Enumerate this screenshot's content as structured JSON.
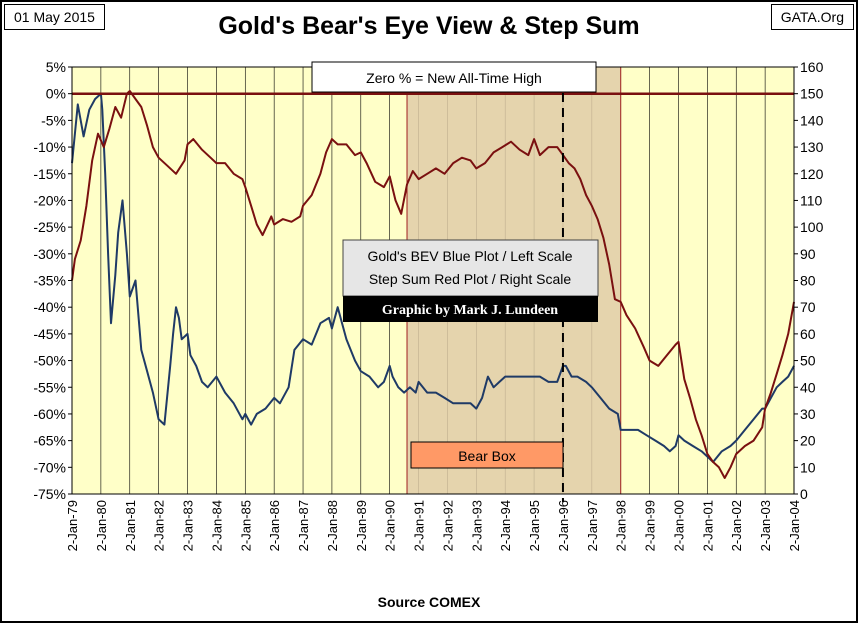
{
  "header": {
    "date": "01 May 2015",
    "site": "GATA.Org",
    "title": "Gold's Bear's Eye View & Step Sum"
  },
  "footer": {
    "source": "Source COMEX"
  },
  "colors": {
    "plot_bg": "#ffffc8",
    "bear_box_fill": "#e0cca8",
    "bear_box_border": "#a02020",
    "blue_series": "#1f3a66",
    "red_series": "#7a1010",
    "zero_line": "#7a1010",
    "bear_label_fill": "#ff9966"
  },
  "chart_data": {
    "type": "line",
    "title": "Gold's Bear's Eye View & Step Sum",
    "xlabel": "Source COMEX",
    "x_ticks": [
      "2-Jan-79",
      "2-Jan-80",
      "2-Jan-81",
      "2-Jan-82",
      "2-Jan-83",
      "2-Jan-84",
      "2-Jan-85",
      "2-Jan-86",
      "2-Jan-87",
      "2-Jan-88",
      "2-Jan-89",
      "2-Jan-90",
      "2-Jan-91",
      "2-Jan-92",
      "2-Jan-93",
      "2-Jan-94",
      "2-Jan-95",
      "2-Jan-96",
      "2-Jan-97",
      "2-Jan-98",
      "2-Jan-99",
      "2-Jan-00",
      "2-Jan-01",
      "2-Jan-02",
      "2-Jan-03",
      "2-Jan-04"
    ],
    "xlim": [
      1979,
      2004
    ],
    "left_axis": {
      "ylim": [
        -75,
        5
      ],
      "ticks": [
        "5%",
        "0%",
        "-5%",
        "-10%",
        "-15%",
        "-20%",
        "-25%",
        "-30%",
        "-35%",
        "-40%",
        "-45%",
        "-50%",
        "-55%",
        "-60%",
        "-65%",
        "-70%",
        "-75%"
      ]
    },
    "right_axis": {
      "ylim": [
        0,
        160
      ],
      "ticks": [
        "160",
        "150",
        "140",
        "130",
        "120",
        "110",
        "100",
        "90",
        "80",
        "70",
        "60",
        "50",
        "40",
        "30",
        "20",
        "10",
        "0"
      ]
    },
    "grid": "vertical",
    "annotations": {
      "zero_note": "Zero % = New All-Time High",
      "legend_line1": "Gold's BEV Blue Plot / Left Scale",
      "legend_line2": "Step Sum Red Plot / Right Scale",
      "credit": "Graphic by Mark J. Lundeen",
      "bear_box_label": "Bear Box",
      "bear_box_range": [
        1990.6,
        1998.0
      ],
      "bear_box_top_value": 5,
      "dashed_marker_x": 1996.0
    },
    "series": [
      {
        "axis": "left",
        "x": [
          1979.0,
          1979.2,
          1979.4,
          1979.6,
          1979.8,
          1980.0,
          1980.05,
          1980.15,
          1980.25,
          1980.35,
          1980.5,
          1980.6,
          1980.75,
          1980.9,
          1981.0,
          1981.2,
          1981.4,
          1981.6,
          1981.8,
          1982.0,
          1982.2,
          1982.4,
          1982.5,
          1982.6,
          1982.7,
          1982.8,
          1983.0,
          1983.1,
          1983.3,
          1983.5,
          1983.7,
          1984.0,
          1984.3,
          1984.6,
          1984.9,
          1985.0,
          1985.2,
          1985.4,
          1985.7,
          1986.0,
          1986.2,
          1986.5,
          1986.7,
          1987.0,
          1987.3,
          1987.6,
          1987.9,
          1988.0,
          1988.2,
          1988.5,
          1988.8,
          1989.0,
          1989.3,
          1989.6,
          1989.8,
          1990.0,
          1990.1,
          1990.3,
          1990.5,
          1990.7,
          1990.9,
          1991.0,
          1991.3,
          1991.6,
          1991.9,
          1992.2,
          1992.5,
          1992.8,
          1993.0,
          1993.2,
          1993.4,
          1993.6,
          1993.8,
          1994.0,
          1994.3,
          1994.6,
          1994.9,
          1995.2,
          1995.5,
          1995.8,
          1996.0,
          1996.1,
          1996.3,
          1996.5,
          1996.8,
          1997.0,
          1997.3,
          1997.6,
          1997.9,
          1998.0,
          1998.3,
          1998.6,
          1998.9,
          1999.2,
          1999.5,
          1999.7,
          1999.9,
          2000.0,
          2000.2,
          2000.5,
          2000.8,
          2001.0,
          2001.2,
          2001.5,
          2001.8,
          2002.0,
          2002.3,
          2002.6,
          2002.9,
          2003.0,
          2003.2,
          2003.4,
          2003.6,
          2003.8,
          2004.0
        ],
        "values": [
          -13,
          -2,
          -8,
          -3,
          -1,
          0,
          -3,
          -15,
          -30,
          -43,
          -34,
          -26,
          -20,
          -30,
          -38,
          -35,
          -48,
          -52,
          -56,
          -61,
          -62,
          -51,
          -45,
          -40,
          -42,
          -46,
          -45,
          -49,
          -51,
          -54,
          -55,
          -53,
          -56,
          -58,
          -61,
          -60,
          -62,
          -60,
          -59,
          -57,
          -58,
          -55,
          -48,
          -46,
          -47,
          -43,
          -42,
          -44,
          -40,
          -46,
          -50,
          -52,
          -53,
          -55,
          -54,
          -51,
          -53,
          -55,
          -56,
          -55,
          -56,
          -54,
          -56,
          -56,
          -57,
          -58,
          -58,
          -58,
          -59,
          -57,
          -53,
          -55,
          -54,
          -53,
          -53,
          -53,
          -53,
          -53,
          -54,
          -54,
          -51,
          -51,
          -53,
          -53,
          -54,
          -55,
          -57,
          -59,
          -60,
          -63,
          -63,
          -63,
          -64,
          -65,
          -66,
          -67,
          -66,
          -64,
          -65,
          -66,
          -67,
          -68,
          -69,
          -67,
          -66,
          -65,
          -63,
          -61,
          -59,
          -59,
          -57,
          -55,
          -54,
          -53,
          -51
        ]
      },
      {
        "axis": "right",
        "x": [
          1979.0,
          1979.1,
          1979.3,
          1979.5,
          1979.7,
          1979.9,
          1980.1,
          1980.3,
          1980.5,
          1980.7,
          1980.9,
          1981.0,
          1981.2,
          1981.4,
          1981.6,
          1981.8,
          1982.0,
          1982.3,
          1982.6,
          1982.9,
          1983.0,
          1983.2,
          1983.5,
          1983.8,
          1984.0,
          1984.3,
          1984.6,
          1984.9,
          1985.0,
          1985.2,
          1985.4,
          1985.6,
          1985.9,
          1986.0,
          1986.3,
          1986.6,
          1986.9,
          1987.0,
          1987.3,
          1987.6,
          1987.8,
          1988.0,
          1988.2,
          1988.5,
          1988.8,
          1989.0,
          1989.2,
          1989.5,
          1989.8,
          1990.0,
          1990.2,
          1990.4,
          1990.6,
          1990.8,
          1991.0,
          1991.3,
          1991.6,
          1991.9,
          1992.2,
          1992.5,
          1992.8,
          1993.0,
          1993.3,
          1993.6,
          1993.9,
          1994.2,
          1994.5,
          1994.8,
          1995.0,
          1995.2,
          1995.5,
          1995.8,
          1996.0,
          1996.2,
          1996.4,
          1996.6,
          1996.8,
          1997.0,
          1997.2,
          1997.4,
          1997.6,
          1997.8,
          1998.0,
          1998.2,
          1998.5,
          1998.8,
          1999.0,
          1999.3,
          1999.6,
          1999.9,
          2000.0,
          2000.2,
          2000.4,
          2000.6,
          2000.8,
          2001.0,
          2001.2,
          2001.4,
          2001.6,
          2001.8,
          2002.0,
          2002.3,
          2002.6,
          2002.9,
          2003.0,
          2003.2,
          2003.4,
          2003.6,
          2003.8,
          2004.0
        ],
        "values": [
          80,
          88,
          95,
          108,
          125,
          135,
          130,
          137,
          145,
          141,
          150,
          151,
          148,
          145,
          138,
          130,
          126,
          123,
          120,
          125,
          131,
          133,
          129,
          126,
          124,
          124,
          120,
          118,
          115,
          108,
          101,
          97,
          104,
          101,
          103,
          102,
          104,
          108,
          112,
          120,
          128,
          133,
          131,
          131,
          127,
          128,
          124,
          117,
          115,
          119,
          110,
          105,
          116,
          121,
          118,
          120,
          122,
          120,
          124,
          126,
          125,
          122,
          124,
          128,
          130,
          132,
          129,
          127,
          133,
          127,
          130,
          130,
          127,
          124,
          122,
          118,
          112,
          108,
          103,
          96,
          86,
          73,
          72,
          67,
          62,
          55,
          50,
          48,
          52,
          56,
          57,
          43,
          36,
          28,
          22,
          15,
          12,
          10,
          6,
          10,
          15,
          18,
          20,
          25,
          32,
          38,
          45,
          52,
          60,
          72
        ]
      }
    ]
  }
}
